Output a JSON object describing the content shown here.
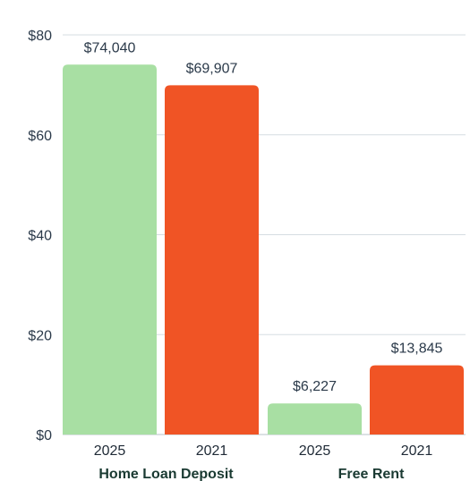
{
  "chart_data": {
    "type": "bar",
    "title": "",
    "xlabel": "",
    "ylabel": "",
    "ylim": [
      0,
      80
    ],
    "yticks": [
      {
        "value": 0,
        "label": "$0"
      },
      {
        "value": 20,
        "label": "$20"
      },
      {
        "value": 40,
        "label": "$40"
      },
      {
        "value": 60,
        "label": "$60"
      },
      {
        "value": 80,
        "label": "$80"
      }
    ],
    "grid": "horizontal",
    "groups": [
      {
        "label": "Home Loan Deposit",
        "bars": [
          {
            "category": "2025",
            "value": 74.04,
            "label": "$74,040",
            "color": "#a8dfa3"
          },
          {
            "category": "2021",
            "value": 69.907,
            "label": "$69,907",
            "color": "#f05425"
          }
        ]
      },
      {
        "label": "Free Rent",
        "bars": [
          {
            "category": "2025",
            "value": 6.227,
            "label": "$6,227",
            "color": "#a8dfa3"
          },
          {
            "category": "2021",
            "value": 13.845,
            "label": "$13,845",
            "color": "#f05425"
          }
        ]
      }
    ]
  }
}
